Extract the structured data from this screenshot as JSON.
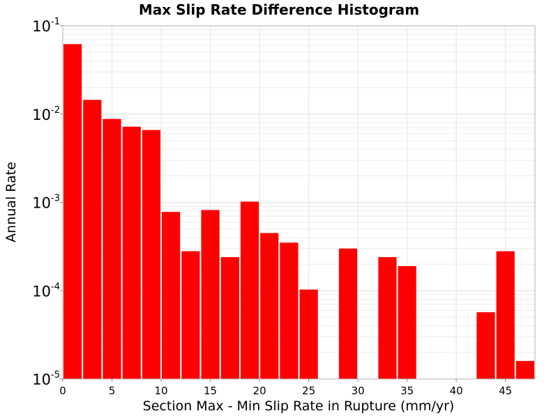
{
  "chart_data": {
    "type": "bar",
    "title": "Max Slip Rate Difference Histogram",
    "xlabel": "Section Max - Min Slip Rate in Rupture (mm/yr)",
    "ylabel": "Annual Rate",
    "xlim": [
      0,
      48
    ],
    "ylim": [
      1e-05,
      0.1
    ],
    "yscale": "log",
    "bin_width": 2,
    "x_ticks": [
      0,
      5,
      10,
      15,
      20,
      25,
      30,
      35,
      40,
      45
    ],
    "y_ticks": [
      {
        "value": 1e-05,
        "base": "10",
        "exp": "-5"
      },
      {
        "value": 0.0001,
        "base": "10",
        "exp": "-4"
      },
      {
        "value": 0.001,
        "base": "10",
        "exp": "-3"
      },
      {
        "value": 0.01,
        "base": "10",
        "exp": "-2"
      },
      {
        "value": 0.1,
        "base": "10",
        "exp": "-1"
      }
    ],
    "grid": true,
    "bar_color": "#ff0000",
    "bins": [
      {
        "x": 1,
        "value": 0.062
      },
      {
        "x": 3,
        "value": 0.0145
      },
      {
        "x": 5,
        "value": 0.0088
      },
      {
        "x": 7,
        "value": 0.0072
      },
      {
        "x": 9,
        "value": 0.0066
      },
      {
        "x": 11,
        "value": 0.00078
      },
      {
        "x": 13,
        "value": 0.00028
      },
      {
        "x": 15,
        "value": 0.00082
      },
      {
        "x": 17,
        "value": 0.00024
      },
      {
        "x": 19,
        "value": 0.00102
      },
      {
        "x": 21,
        "value": 0.00045
      },
      {
        "x": 23,
        "value": 0.00035
      },
      {
        "x": 25,
        "value": 0.000103
      },
      {
        "x": 29,
        "value": 0.0003
      },
      {
        "x": 33,
        "value": 0.00024
      },
      {
        "x": 35,
        "value": 0.00019
      },
      {
        "x": 43,
        "value": 5.7e-05
      },
      {
        "x": 45,
        "value": 0.00028
      },
      {
        "x": 47,
        "value": 1.6e-05
      }
    ]
  }
}
